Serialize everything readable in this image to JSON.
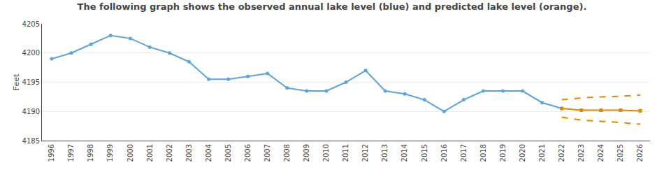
{
  "chart_data": {
    "type": "line",
    "title": "The following graph shows the observed annual lake level (blue) and predicted lake level (orange).",
    "ylabel": "Feet",
    "xlim": [
      1995.5,
      2026.5
    ],
    "xticks": [
      1996,
      1997,
      1998,
      1999,
      2000,
      2001,
      2002,
      2003,
      2004,
      2005,
      2006,
      2007,
      2008,
      2009,
      2010,
      2011,
      2012,
      2013,
      2014,
      2015,
      2016,
      2017,
      2018,
      2019,
      2020,
      2021,
      2022,
      2023,
      2024,
      2025,
      2026
    ],
    "ylim": [
      4185,
      4205
    ],
    "yticks": [
      4185,
      4190,
      4195,
      4200,
      4205
    ],
    "grid": true,
    "series": [
      {
        "x": [
          1996,
          1997,
          1998,
          1999,
          2000,
          2001,
          2002,
          2003,
          2004,
          2005,
          2006,
          2007,
          2008,
          2009,
          2010,
          2011,
          2012,
          2013,
          2014,
          2015,
          2016,
          2017,
          2018,
          2019,
          2020,
          2021,
          2022
        ],
        "values": [
          4199,
          4200,
          4201.5,
          4203,
          4202.5,
          4201,
          4200,
          4198.5,
          4195.5,
          4195.5,
          4196,
          4196.5,
          4194,
          4193.5,
          4193.5,
          4195,
          4197,
          4193.5,
          4193,
          4192,
          4190,
          4192,
          4193.5,
          4193.5,
          4193.5,
          4191.5,
          4190.5
        ],
        "color": "#5ba3d9",
        "marker": "circle",
        "line_style": "solid"
      },
      {
        "x": [
          2022,
          2023,
          2024,
          2025,
          2026
        ],
        "values": [
          4190.5,
          4190.2,
          4190.2,
          4190.2,
          4190.1
        ],
        "color": "#e08a00",
        "marker": "square",
        "line_style": "solid"
      },
      {
        "x": [
          2022,
          2023,
          2024,
          2025,
          2026
        ],
        "values": [
          4192.0,
          4192.3,
          4192.5,
          4192.6,
          4192.8
        ],
        "color": "#e08a00",
        "line_style": "dash"
      },
      {
        "x": [
          2022,
          2023,
          2024,
          2025,
          2026
        ],
        "values": [
          4189.0,
          4188.5,
          4188.3,
          4188.1,
          4187.8
        ],
        "color": "#e08a00",
        "line_style": "dash"
      }
    ]
  }
}
